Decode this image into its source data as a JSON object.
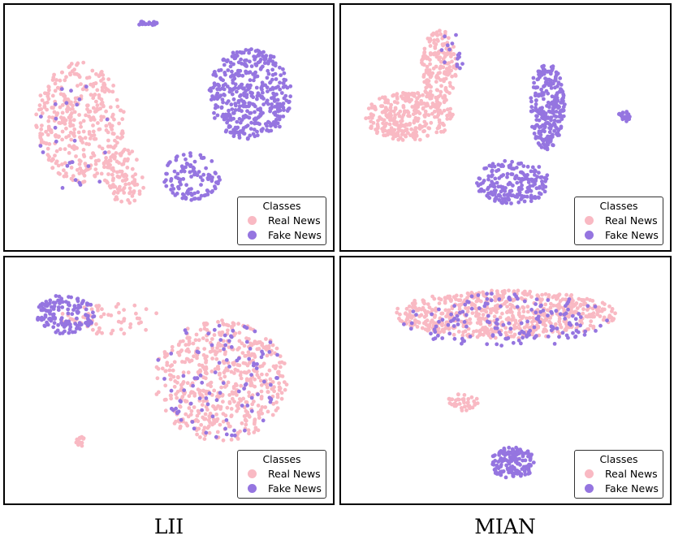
{
  "colors": {
    "real_news": "#f9b9c3",
    "fake_news": "#9575e0"
  },
  "legend": {
    "title": "Classes",
    "real_label": "Real News",
    "fake_label": "Fake News"
  },
  "captions": [
    "LII",
    "MIAN"
  ],
  "chart_data": [
    {
      "type": "scatter",
      "method": "LII",
      "row": "top",
      "title": "",
      "xlabel": "",
      "ylabel": "",
      "series": [
        {
          "name": "Real News",
          "clusters": [
            {
              "cx": -0.6,
              "cy": 0.05,
              "rx": 0.3,
              "ry": 0.55,
              "n": 380
            },
            {
              "cx": -0.3,
              "cy": -0.45,
              "rx": 0.14,
              "ry": 0.25,
              "n": 90
            }
          ]
        },
        {
          "name": "Fake News",
          "clusters": [
            {
              "cx": 0.55,
              "cy": 0.3,
              "rx": 0.28,
              "ry": 0.42,
              "n": 420
            },
            {
              "cx": 0.15,
              "cy": -0.45,
              "rx": 0.2,
              "ry": 0.22,
              "n": 110
            },
            {
              "cx": -0.15,
              "cy": 0.95,
              "rx": 0.08,
              "ry": 0.02,
              "n": 25
            },
            {
              "cx": -0.6,
              "cy": -0.1,
              "rx": 0.3,
              "ry": 0.5,
              "n": 25
            }
          ]
        }
      ]
    },
    {
      "type": "scatter",
      "method": "MIAN",
      "row": "top",
      "title": "",
      "xlabel": "",
      "ylabel": "",
      "series": [
        {
          "name": "Real News",
          "clusters": [
            {
              "cx": -0.65,
              "cy": 0.1,
              "rx": 0.3,
              "ry": 0.22,
              "n": 300
            },
            {
              "cx": -0.45,
              "cy": 0.55,
              "rx": 0.12,
              "ry": 0.35,
              "n": 180
            }
          ]
        },
        {
          "name": "Fake News",
          "clusters": [
            {
              "cx": 0.05,
              "cy": -0.5,
              "rx": 0.25,
              "ry": 0.2,
              "n": 200
            },
            {
              "cx": 0.28,
              "cy": 0.2,
              "rx": 0.12,
              "ry": 0.4,
              "n": 260
            },
            {
              "cx": 0.8,
              "cy": 0.1,
              "rx": 0.04,
              "ry": 0.05,
              "n": 20
            },
            {
              "cx": -0.35,
              "cy": 0.7,
              "rx": 0.1,
              "ry": 0.2,
              "n": 15
            }
          ]
        }
      ]
    },
    {
      "type": "scatter",
      "method": "LII",
      "row": "bottom",
      "title": "",
      "xlabel": "",
      "ylabel": "",
      "series": [
        {
          "name": "Real News",
          "clusters": [
            {
              "cx": 0.35,
              "cy": 0.0,
              "rx": 0.45,
              "ry": 0.55,
              "n": 560
            },
            {
              "cx": -0.4,
              "cy": 0.55,
              "rx": 0.35,
              "ry": 0.15,
              "n": 60
            },
            {
              "cx": -0.6,
              "cy": -0.55,
              "rx": 0.03,
              "ry": 0.05,
              "n": 15
            }
          ]
        },
        {
          "name": "Fake News",
          "clusters": [
            {
              "cx": -0.7,
              "cy": 0.6,
              "rx": 0.2,
              "ry": 0.18,
              "n": 150
            },
            {
              "cx": 0.35,
              "cy": 0.0,
              "rx": 0.45,
              "ry": 0.55,
              "n": 100
            }
          ]
        }
      ]
    },
    {
      "type": "scatter",
      "method": "MIAN",
      "row": "bottom",
      "title": "",
      "xlabel": "",
      "ylabel": "",
      "series": [
        {
          "name": "Real News",
          "clusters": [
            {
              "cx": 0.0,
              "cy": 0.6,
              "rx": 0.75,
              "ry": 0.22,
              "n": 650
            },
            {
              "cx": -0.3,
              "cy": -0.2,
              "rx": 0.12,
              "ry": 0.08,
              "n": 40
            }
          ]
        },
        {
          "name": "Fake News",
          "clusters": [
            {
              "cx": 0.0,
              "cy": 0.55,
              "rx": 0.7,
              "ry": 0.25,
              "n": 160
            },
            {
              "cx": 0.05,
              "cy": -0.75,
              "rx": 0.15,
              "ry": 0.15,
              "n": 150
            }
          ]
        }
      ]
    }
  ]
}
